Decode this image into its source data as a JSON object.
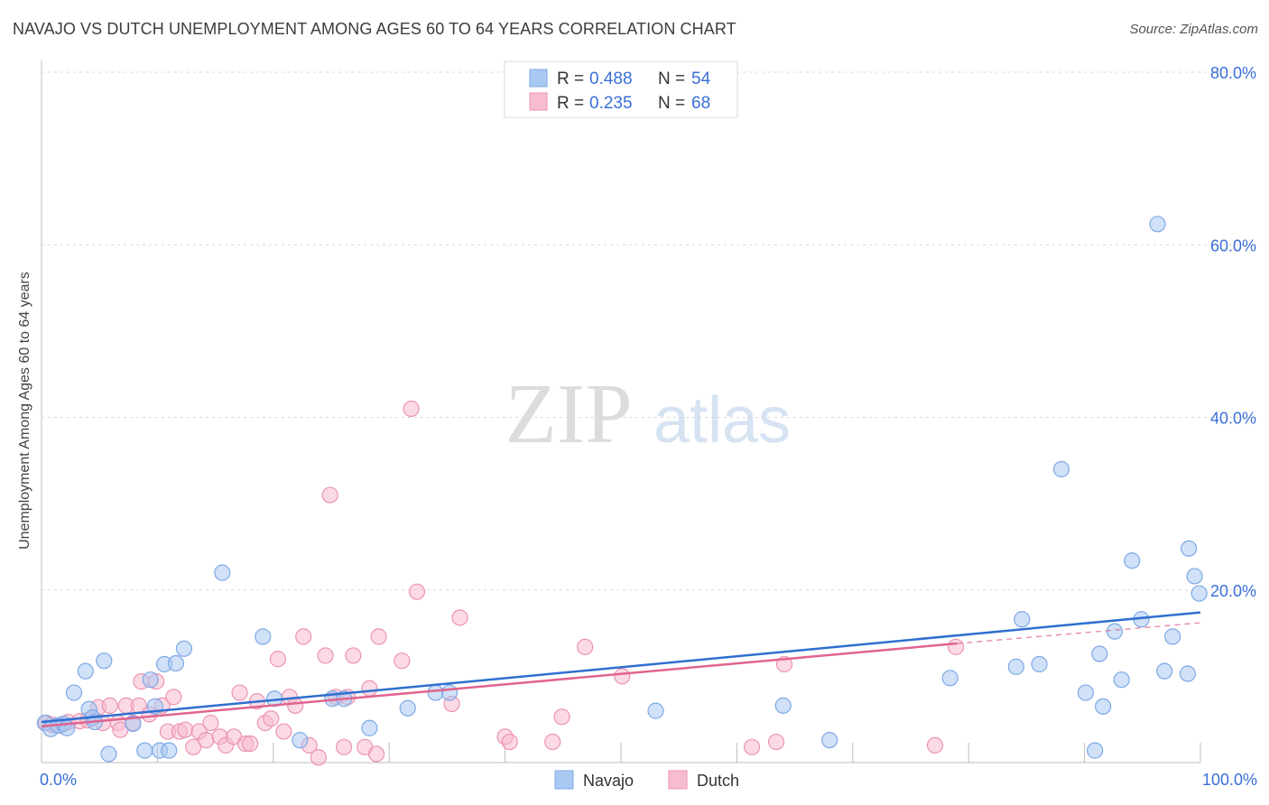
{
  "header": {
    "title": "NAVAJO VS DUTCH UNEMPLOYMENT AMONG AGES 60 TO 64 YEARS CORRELATION CHART",
    "source": "Source: ZipAtlas.com"
  },
  "watermark": {
    "zip": "ZIP",
    "atlas": "atlas"
  },
  "colors": {
    "navajo_fill": "#a9c9f3",
    "navajo_stroke": "#7ea9e6",
    "navajo_line": "#2f6fd0",
    "dutch_fill": "#f7bcd0",
    "dutch_stroke": "#ec93b2",
    "dutch_line": "#e0648f",
    "tick_color": "#3a6fd8"
  },
  "chart_data": {
    "type": "scatter",
    "title": "NAVAJO VS DUTCH UNEMPLOYMENT AMONG AGES 60 TO 64 YEARS CORRELATION CHART",
    "xlabel": "",
    "ylabel": "Unemployment Among Ages 60 to 64 years",
    "xlim": [
      0,
      100
    ],
    "ylim": [
      0,
      80
    ],
    "x_tick_labels": [
      "0.0%",
      "100.0%"
    ],
    "y_ticks": [
      20,
      40,
      60,
      80
    ],
    "y_tick_labels": [
      "20.0%",
      "40.0%",
      "60.0%",
      "80.0%"
    ],
    "legend": [
      {
        "name": "Navajo",
        "R_label": "R =",
        "R": "0.488",
        "N_label": "N =",
        "N": "54"
      },
      {
        "name": "Dutch",
        "R_label": "R =",
        "R": "0.235",
        "N_label": "N =",
        "N": "68"
      }
    ],
    "series": [
      {
        "name": "Navajo",
        "trend": {
          "x": [
            0,
            100
          ],
          "y": [
            4.7,
            17.4
          ],
          "dashed_from": null
        },
        "points": [
          [
            0.3,
            4.6
          ],
          [
            0.8,
            3.9
          ],
          [
            1.4,
            4.3
          ],
          [
            1.9,
            4.5
          ],
          [
            2.2,
            4.0
          ],
          [
            2.8,
            8.1
          ],
          [
            3.8,
            10.6
          ],
          [
            4.1,
            6.2
          ],
          [
            4.4,
            5.2
          ],
          [
            4.6,
            4.7
          ],
          [
            5.4,
            11.8
          ],
          [
            5.8,
            1.0
          ],
          [
            7.9,
            4.5
          ],
          [
            8.9,
            1.4
          ],
          [
            9.4,
            9.6
          ],
          [
            9.8,
            6.5
          ],
          [
            10.2,
            1.4
          ],
          [
            10.6,
            11.4
          ],
          [
            11.6,
            11.5
          ],
          [
            11.0,
            1.4
          ],
          [
            12.3,
            13.2
          ],
          [
            15.6,
            22.0
          ],
          [
            19.1,
            14.6
          ],
          [
            20.1,
            7.4
          ],
          [
            22.3,
            2.6
          ],
          [
            25.1,
            7.4
          ],
          [
            26.1,
            7.4
          ],
          [
            28.3,
            4.0
          ],
          [
            31.6,
            6.3
          ],
          [
            34.0,
            8.1
          ],
          [
            35.2,
            8.1
          ],
          [
            53.0,
            6.0
          ],
          [
            64.0,
            6.6
          ],
          [
            68.0,
            2.6
          ],
          [
            78.4,
            9.8
          ],
          [
            84.1,
            11.1
          ],
          [
            84.6,
            16.6
          ],
          [
            86.1,
            11.4
          ],
          [
            88.0,
            34.0
          ],
          [
            90.1,
            8.1
          ],
          [
            90.9,
            1.4
          ],
          [
            91.3,
            12.6
          ],
          [
            91.6,
            6.5
          ],
          [
            92.6,
            15.2
          ],
          [
            93.2,
            9.6
          ],
          [
            94.1,
            23.4
          ],
          [
            94.9,
            16.6
          ],
          [
            96.3,
            62.4
          ],
          [
            96.9,
            10.6
          ],
          [
            97.6,
            14.6
          ],
          [
            98.9,
            10.3
          ],
          [
            99.0,
            24.8
          ],
          [
            99.5,
            21.6
          ],
          [
            99.9,
            19.6
          ]
        ]
      },
      {
        "name": "Dutch",
        "trend": {
          "x": [
            0,
            79,
            100
          ],
          "y": [
            4.2,
            13.8,
            16.2
          ],
          "dashed_from": 79
        },
        "points": [
          [
            0.4,
            4.6
          ],
          [
            0.9,
            4.4
          ],
          [
            1.6,
            4.3
          ],
          [
            2.3,
            4.7
          ],
          [
            3.3,
            4.8
          ],
          [
            4.0,
            4.9
          ],
          [
            4.9,
            6.4
          ],
          [
            5.3,
            4.6
          ],
          [
            5.9,
            6.6
          ],
          [
            6.6,
            4.6
          ],
          [
            6.8,
            3.8
          ],
          [
            7.3,
            6.6
          ],
          [
            7.9,
            4.6
          ],
          [
            8.4,
            6.6
          ],
          [
            8.6,
            9.4
          ],
          [
            9.3,
            5.6
          ],
          [
            9.9,
            9.4
          ],
          [
            10.4,
            6.6
          ],
          [
            10.9,
            3.6
          ],
          [
            11.4,
            7.6
          ],
          [
            11.9,
            3.6
          ],
          [
            12.4,
            3.8
          ],
          [
            13.1,
            1.8
          ],
          [
            13.6,
            3.6
          ],
          [
            14.2,
            2.6
          ],
          [
            14.6,
            4.6
          ],
          [
            15.4,
            3.0
          ],
          [
            15.9,
            2.0
          ],
          [
            16.6,
            3.0
          ],
          [
            17.1,
            8.1
          ],
          [
            17.6,
            2.2
          ],
          [
            18.0,
            2.2
          ],
          [
            18.6,
            7.1
          ],
          [
            19.3,
            4.6
          ],
          [
            19.8,
            5.1
          ],
          [
            20.4,
            12.0
          ],
          [
            20.9,
            3.6
          ],
          [
            21.4,
            7.6
          ],
          [
            21.9,
            6.6
          ],
          [
            22.6,
            14.6
          ],
          [
            23.1,
            2.0
          ],
          [
            23.9,
            0.6
          ],
          [
            24.5,
            12.4
          ],
          [
            24.9,
            31.0
          ],
          [
            25.4,
            7.6
          ],
          [
            26.1,
            1.8
          ],
          [
            26.4,
            7.6
          ],
          [
            26.9,
            12.4
          ],
          [
            27.9,
            1.8
          ],
          [
            28.3,
            8.6
          ],
          [
            28.9,
            1.0
          ],
          [
            29.1,
            14.6
          ],
          [
            31.1,
            11.8
          ],
          [
            31.9,
            41.0
          ],
          [
            32.4,
            19.8
          ],
          [
            35.4,
            6.8
          ],
          [
            36.1,
            16.8
          ],
          [
            40.0,
            3.0
          ],
          [
            40.4,
            2.4
          ],
          [
            44.1,
            2.4
          ],
          [
            44.9,
            5.3
          ],
          [
            46.9,
            13.4
          ],
          [
            50.1,
            10.0
          ],
          [
            63.4,
            2.4
          ],
          [
            64.1,
            11.4
          ],
          [
            77.1,
            2.0
          ],
          [
            78.9,
            13.4
          ],
          [
            61.3,
            1.8
          ]
        ]
      }
    ]
  }
}
